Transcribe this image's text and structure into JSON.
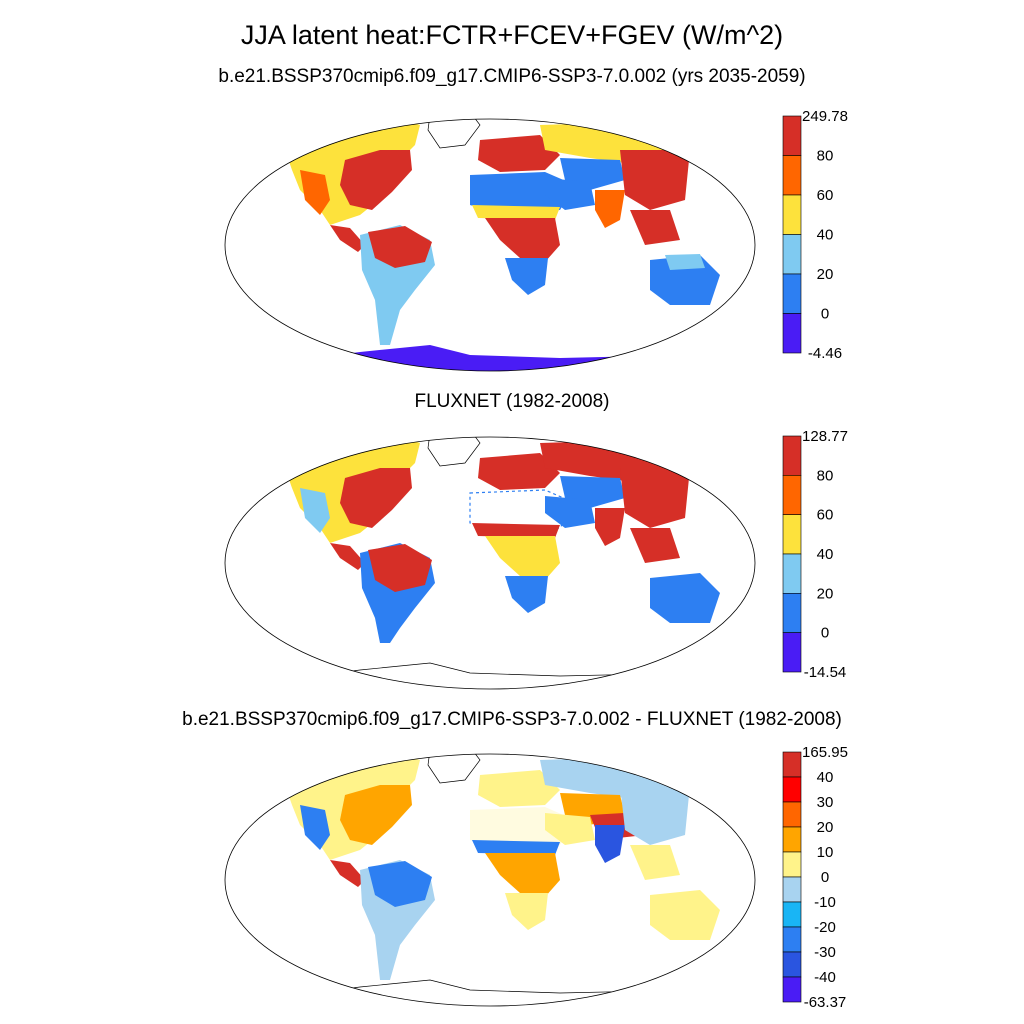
{
  "title": "JJA latent heat:FCTR+FCEV+FGEV (W/m^2)",
  "panels": [
    {
      "title": "b.e21.BSSP370cmip6.f09_g17.CMIP6-SSP3-7.0.002 (yrs 2035-2059)",
      "colorbar": {
        "max_label": "249.78",
        "min_label": "-4.46",
        "levels": [
          "80",
          "60",
          "40",
          "20",
          "0"
        ],
        "colors": [
          "#d62f27",
          "#ff6600",
          "#fde23c",
          "#7fcaf1",
          "#2d7ff2",
          "#4a1cf5"
        ]
      }
    },
    {
      "title": "FLUXNET (1982-2008)",
      "colorbar": {
        "max_label": "128.77",
        "min_label": "-14.54",
        "levels": [
          "80",
          "60",
          "40",
          "20",
          "0"
        ],
        "colors": [
          "#d62f27",
          "#ff6600",
          "#fde23c",
          "#7fcaf1",
          "#2d7ff2",
          "#4a1cf5"
        ]
      }
    },
    {
      "title": "b.e21.BSSP370cmip6.f09_g17.CMIP6-SSP3-7.0.002 - FLUXNET (1982-2008)",
      "colorbar": {
        "max_label": "165.95",
        "min_label": "-63.37",
        "levels": [
          "40",
          "30",
          "20",
          "10",
          "0",
          "-10",
          "-20",
          "-30",
          "-40"
        ],
        "colors": [
          "#d62f27",
          "#ff0000",
          "#ff6600",
          "#ffa500",
          "#fff38a",
          "#a8d3f0",
          "#19b5f5",
          "#2d7ff2",
          "#2a55e0",
          "#4a1cf5"
        ]
      }
    }
  ]
}
